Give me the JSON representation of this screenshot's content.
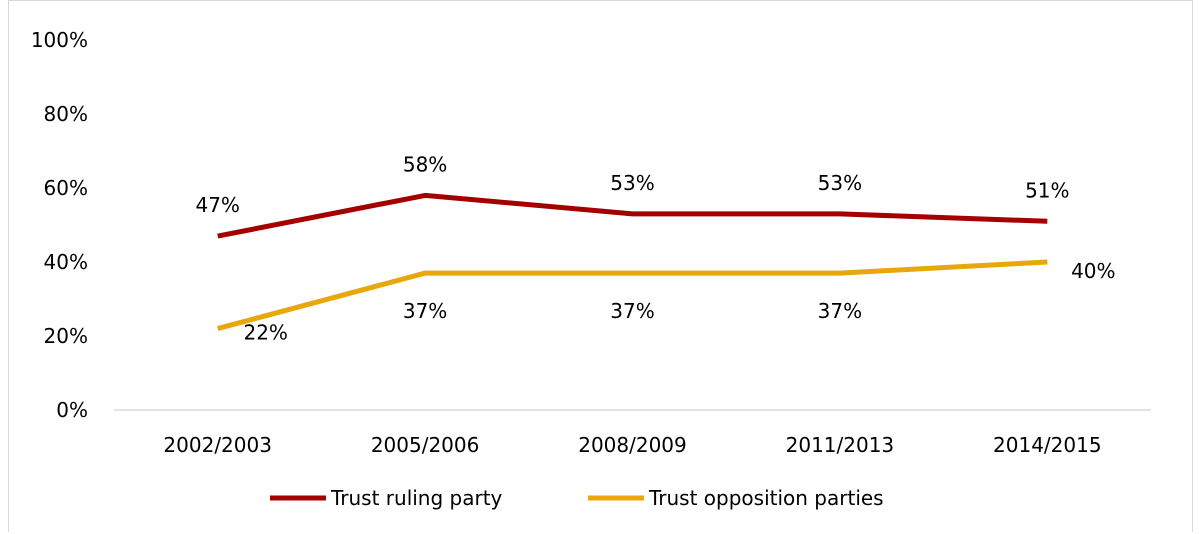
{
  "chart_data": {
    "type": "line",
    "categories": [
      "2002/2003",
      "2005/2006",
      "2008/2009",
      "2011/2013",
      "2014/2015"
    ],
    "series": [
      {
        "name": "Trust ruling party",
        "values": [
          47,
          58,
          53,
          53,
          51
        ],
        "labels": [
          "47%",
          "58%",
          "53%",
          "53%",
          "51%"
        ],
        "color": "#a50000"
      },
      {
        "name": "Trust opposition parties",
        "values": [
          22,
          37,
          37,
          37,
          40
        ],
        "labels": [
          "22%",
          "37%",
          "37%",
          "37%",
          "40%"
        ],
        "color": "#e8a70a"
      }
    ],
    "yticks": [
      "0%",
      "20%",
      "40%",
      "60%",
      "80%",
      "100%"
    ],
    "ylim": [
      0,
      100
    ],
    "grid": false,
    "legend": "bottom"
  }
}
